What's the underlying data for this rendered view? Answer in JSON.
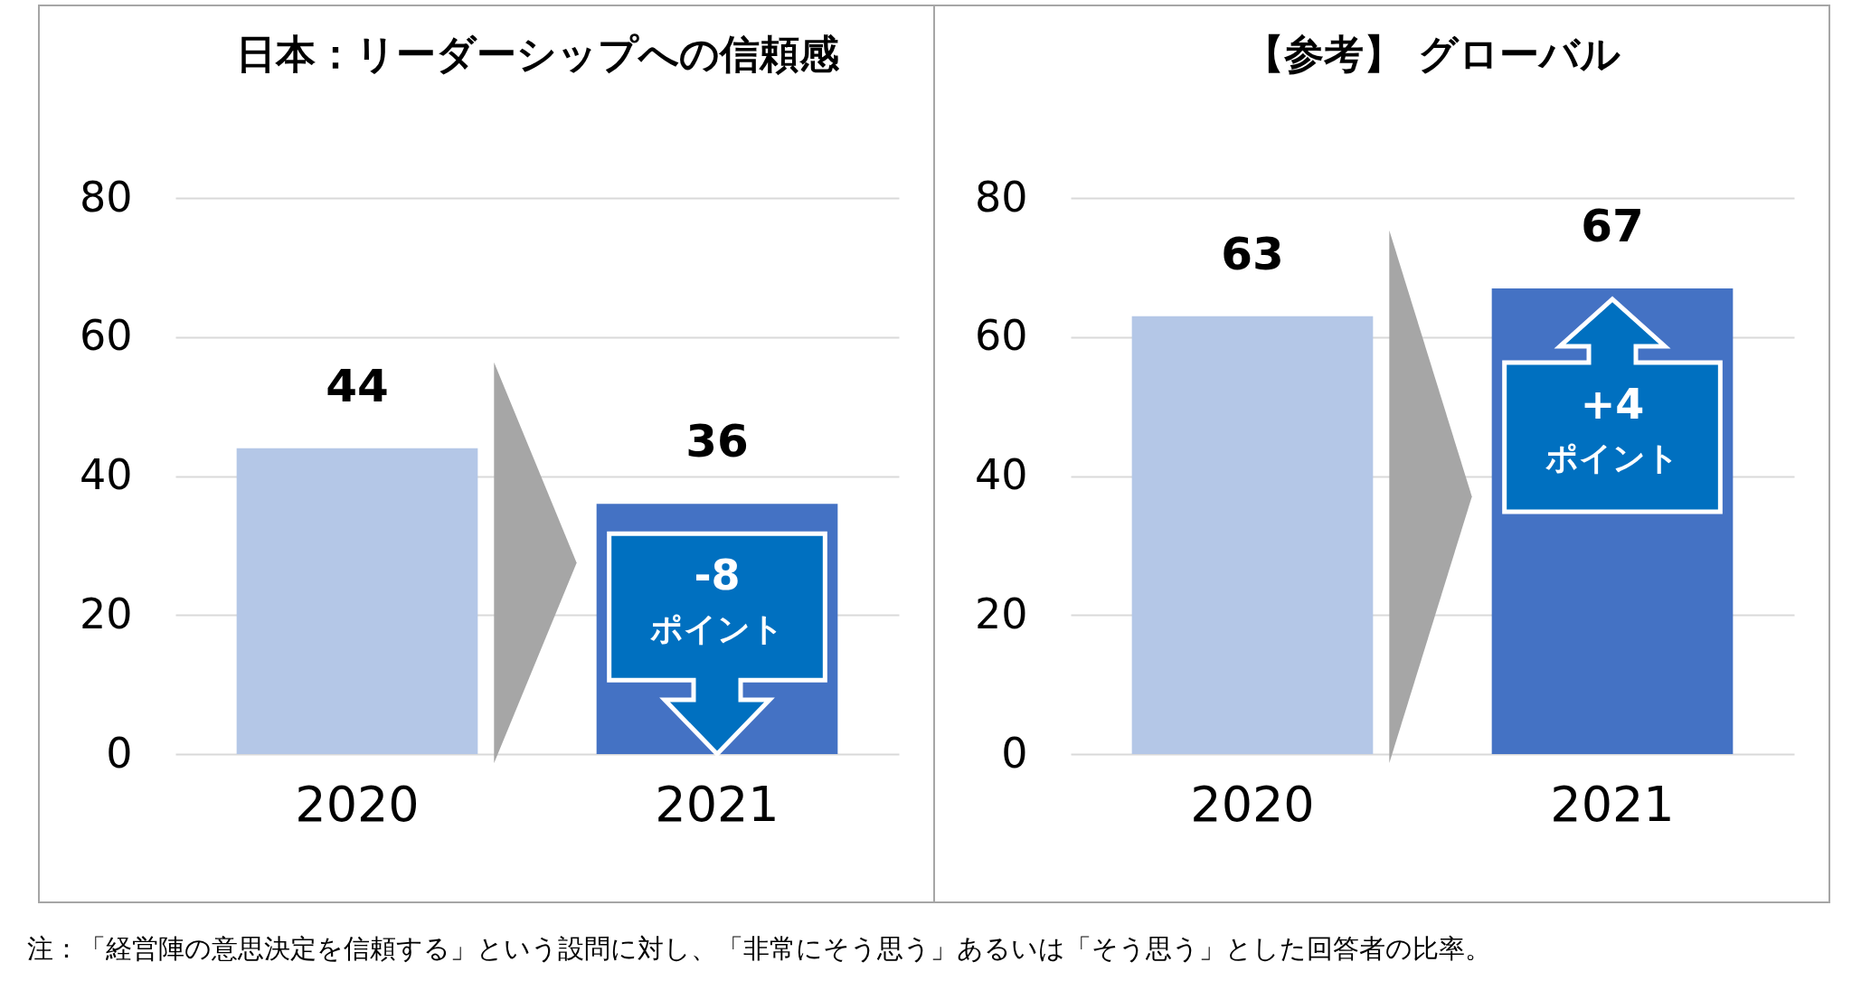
{
  "chart_data": [
    {
      "type": "bar",
      "title": "日本：リーダーシップへの信頼感",
      "categories": [
        "2020",
        "2021"
      ],
      "values": [
        44,
        36
      ],
      "colors": [
        "#b4c7e7",
        "#4472c4"
      ],
      "ylim": [
        0,
        80
      ],
      "yticks": [
        0,
        20,
        40,
        60,
        80
      ],
      "grid": "y",
      "data_labels": true,
      "annotations": [
        {
          "text": "-8\nポイント",
          "x": "2021",
          "y": 36
        },
        "注：「経営陣の意思決定を信頼する」という設問に対し、「非常にそう思う」あるいは「そう思う」とした回答者の比率。"
      ]
    },
    {
      "type": "bar",
      "title": "【参考】 グローバル",
      "categories": [
        "2020",
        "2021"
      ],
      "values": [
        63,
        67
      ],
      "colors": [
        "#b4c7e7",
        "#4472c4"
      ],
      "ylim": [
        0,
        80
      ],
      "yticks": [
        0,
        20,
        40,
        60,
        80
      ],
      "grid": "y",
      "data_labels": true,
      "annotations": [
        {
          "text": "+4\nポイント",
          "x": "2021",
          "y": 67
        }
      ]
    }
  ]
}
